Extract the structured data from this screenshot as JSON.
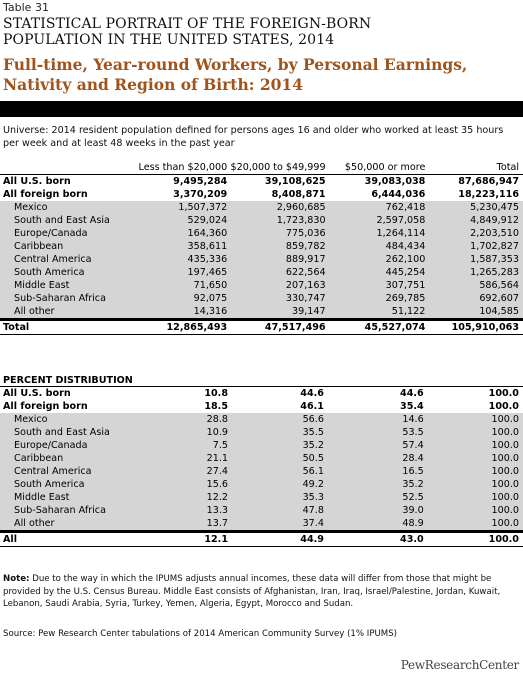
{
  "table_number": "Table 31",
  "title_line1": "STATISTICAL PORTRAIT OF THE FOREIGN-BORN",
  "title_line2": "POPULATION IN THE UNITED STATES, 2014",
  "subtitle_line1": "Full-time, Year-round Workers, by Personal Earnings,",
  "subtitle_line2": "Nativity and Region of Birth: 2014",
  "universe": "Universe: 2014 resident population defined for persons ages 16 and older who worked at least 35 hours per week and at least 48 weeks in the past year",
  "columns": [
    "Less than $20,000",
    "$20,000 to $49,999",
    "$50,000 or more",
    "Total"
  ],
  "counts": {
    "us_born": {
      "label": "All U.S. born",
      "values": [
        "9,495,284",
        "39,108,625",
        "39,083,038",
        "87,686,947"
      ]
    },
    "foreign_born": {
      "label": "All foreign born",
      "values": [
        "3,370,209",
        "8,408,871",
        "6,444,036",
        "18,223,116"
      ]
    },
    "regions": [
      {
        "label": "Mexico",
        "values": [
          "1,507,372",
          "2,960,685",
          "762,418",
          "5,230,475"
        ]
      },
      {
        "label": "South and East Asia",
        "values": [
          "529,024",
          "1,723,830",
          "2,597,058",
          "4,849,912"
        ]
      },
      {
        "label": "Europe/Canada",
        "values": [
          "164,360",
          "775,036",
          "1,264,114",
          "2,203,510"
        ]
      },
      {
        "label": "Caribbean",
        "values": [
          "358,611",
          "859,782",
          "484,434",
          "1,702,827"
        ]
      },
      {
        "label": "Central America",
        "values": [
          "435,336",
          "889,917",
          "262,100",
          "1,587,353"
        ]
      },
      {
        "label": "South America",
        "values": [
          "197,465",
          "622,564",
          "445,254",
          "1,265,283"
        ]
      },
      {
        "label": "Middle East",
        "values": [
          "71,650",
          "207,163",
          "307,751",
          "586,564"
        ]
      },
      {
        "label": "Sub-Saharan Africa",
        "values": [
          "92,075",
          "330,747",
          "269,785",
          "692,607"
        ]
      },
      {
        "label": "All other",
        "values": [
          "14,316",
          "39,147",
          "51,122",
          "104,585"
        ]
      }
    ],
    "total": {
      "label": "Total",
      "values": [
        "12,865,493",
        "47,517,496",
        "45,527,074",
        "105,910,063"
      ]
    }
  },
  "percent": {
    "heading": "PERCENT DISTRIBUTION",
    "us_born": {
      "label": "All U.S. born",
      "values": [
        "10.8",
        "44.6",
        "44.6",
        "100.0"
      ]
    },
    "foreign_born": {
      "label": "All foreign born",
      "values": [
        "18.5",
        "46.1",
        "35.4",
        "100.0"
      ]
    },
    "regions": [
      {
        "label": "Mexico",
        "values": [
          "28.8",
          "56.6",
          "14.6",
          "100.0"
        ]
      },
      {
        "label": "South and East Asia",
        "values": [
          "10.9",
          "35.5",
          "53.5",
          "100.0"
        ]
      },
      {
        "label": "Europe/Canada",
        "values": [
          "7.5",
          "35.2",
          "57.4",
          "100.0"
        ]
      },
      {
        "label": "Caribbean",
        "values": [
          "21.1",
          "50.5",
          "28.4",
          "100.0"
        ]
      },
      {
        "label": "Central America",
        "values": [
          "27.4",
          "56.1",
          "16.5",
          "100.0"
        ]
      },
      {
        "label": "South America",
        "values": [
          "15.6",
          "49.2",
          "35.2",
          "100.0"
        ]
      },
      {
        "label": "Middle East",
        "values": [
          "12.2",
          "35.3",
          "52.5",
          "100.0"
        ]
      },
      {
        "label": "Sub-Saharan Africa",
        "values": [
          "13.3",
          "47.8",
          "39.0",
          "100.0"
        ]
      },
      {
        "label": "All other",
        "values": [
          "13.7",
          "37.4",
          "48.9",
          "100.0"
        ]
      }
    ],
    "total": {
      "label": "All",
      "values": [
        "12.1",
        "44.9",
        "43.0",
        "100.0"
      ]
    }
  },
  "note_label": "Note:",
  "note_text": " Due to the way in which the IPUMS adjusts annual incomes, these data will differ from those that might be provided by the U.S. Census Bureau. Middle East consists of Afghanistan, Iran, Iraq, Israel/Palestine, Jordan, Kuwait, Lebanon, Saudi Arabia, Syria, Turkey, Yemen, Algeria, Egypt, Morocco and Sudan.",
  "source": "Source: Pew Research Center tabulations of 2014 American Community Survey (1% IPUMS)",
  "logo": "PewResearchCenter",
  "colors": {
    "subtitle": "#a0541b",
    "row_shade": "#d5d5d5"
  }
}
